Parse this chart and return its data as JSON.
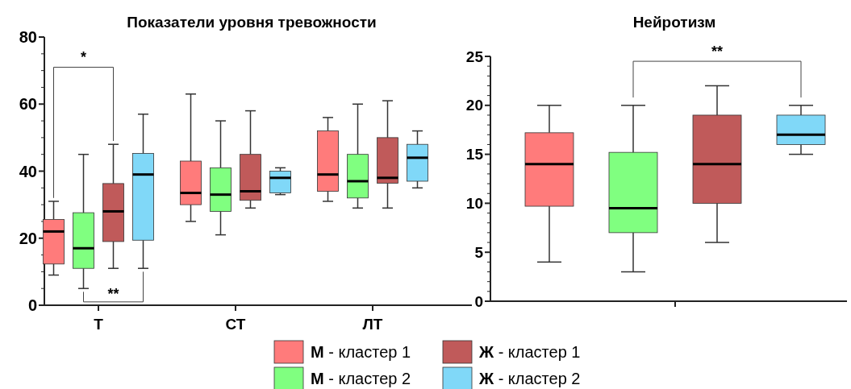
{
  "chart_data": [
    {
      "type": "box",
      "title": "Показатели уровня тревожности",
      "categories": [
        "Т",
        "СТ",
        "ЛТ"
      ],
      "ylim": [
        0,
        80
      ],
      "yticks": [
        0,
        {
          "value": 5,
          "label": null
        },
        {
          "value": 10,
          "label": null
        },
        {
          "value": 15,
          "label": null
        },
        20,
        {
          "value": 25,
          "label": null
        },
        {
          "value": 30,
          "label": null
        },
        {
          "value": 35,
          "label": null
        },
        40,
        {
          "value": 45,
          "label": null
        },
        {
          "value": 50,
          "label": null
        },
        {
          "value": 55,
          "label": null
        },
        60,
        {
          "value": 65,
          "label": null
        },
        {
          "value": 70,
          "label": null
        },
        {
          "value": 75,
          "label": null
        },
        80
      ],
      "legend": "bottom",
      "annotations": [
        "*",
        "**"
      ],
      "series": [
        {
          "name": "М - кластер 1",
          "color": "#ff7b7b",
          "boxes": [
            {
              "low": 9,
              "q1": 12.3,
              "median": 22,
              "q3": 25.6,
              "high": 31
            },
            {
              "low": 25,
              "q1": 30,
              "median": 33.5,
              "q3": 43,
              "high": 63
            },
            {
              "low": 31,
              "q1": 34,
              "median": 39,
              "q3": 52,
              "high": 56
            }
          ]
        },
        {
          "name": "М - кластер 2",
          "color": "#80ff80",
          "boxes": [
            {
              "low": 5,
              "q1": 11,
              "median": 17,
              "q3": 27.6,
              "high": 45
            },
            {
              "low": 21,
              "q1": 28,
              "median": 33,
              "q3": 41,
              "high": 55
            },
            {
              "low": 29,
              "q1": 32,
              "median": 37,
              "q3": 45,
              "high": 60
            }
          ]
        },
        {
          "name": "Ж - кластер 1",
          "color": "#c05a5a",
          "boxes": [
            {
              "low": 11,
              "q1": 19,
              "median": 28,
              "q3": 36.3,
              "high": 48
            },
            {
              "low": 29,
              "q1": 31.3,
              "median": 34,
              "q3": 45,
              "high": 58
            },
            {
              "low": 29,
              "q1": 36.4,
              "median": 38,
              "q3": 50,
              "high": 61
            }
          ]
        },
        {
          "name": "Ж - кластер 2",
          "color": "#80d8f8",
          "boxes": [
            {
              "low": 11,
              "q1": 19.4,
              "median": 39,
              "q3": 45.3,
              "high": 57
            },
            {
              "low": 33,
              "q1": 33.5,
              "median": 38,
              "q3": 40,
              "high": 41
            },
            {
              "low": 35,
              "q1": 37,
              "median": 44,
              "q3": 48,
              "high": 52
            }
          ]
        }
      ]
    },
    {
      "type": "box",
      "title": "Нейротизм",
      "categories": [
        null
      ],
      "ylim": [
        0,
        25
      ],
      "yticks": [
        0,
        {
          "value": 1,
          "label": null
        },
        {
          "value": 2,
          "label": null
        },
        {
          "value": 3,
          "label": null
        },
        {
          "value": 4,
          "label": null
        },
        5,
        {
          "value": 6,
          "label": null
        },
        {
          "value": 7,
          "label": null
        },
        {
          "value": 8,
          "label": null
        },
        {
          "value": 9,
          "label": null
        },
        10,
        {
          "value": 11,
          "label": null
        },
        {
          "value": 12,
          "label": null
        },
        {
          "value": 13,
          "label": null
        },
        {
          "value": 14,
          "label": null
        },
        15,
        {
          "value": 16,
          "label": null
        },
        {
          "value": 17,
          "label": null
        },
        {
          "value": 18,
          "label": null
        },
        {
          "value": 19,
          "label": null
        },
        20,
        {
          "value": 21,
          "label": null
        },
        {
          "value": 22,
          "label": null
        },
        {
          "value": 23,
          "label": null
        },
        {
          "value": 24,
          "label": null
        },
        25
      ],
      "annotations": [
        "**"
      ],
      "series": [
        {
          "color": "#ff7b7b",
          "boxes": [
            {
              "low": 4,
              "q1": 9.7,
              "median": 14,
              "q3": 17.2,
              "high": 20
            }
          ]
        },
        {
          "color": "#80ff80",
          "boxes": [
            {
              "low": 3,
              "q1": 7,
              "median": 9.5,
              "q3": 15.2,
              "high": 20
            }
          ]
        },
        {
          "color": "#c05a5a",
          "boxes": [
            {
              "low": 6,
              "q1": 10,
              "median": 14,
              "q3": 19,
              "high": 22
            }
          ]
        },
        {
          "color": "#80d8f8",
          "boxes": [
            {
              "low": 15,
              "q1": 16,
              "median": 17,
              "q3": 19,
              "high": 20
            }
          ]
        }
      ]
    }
  ]
}
